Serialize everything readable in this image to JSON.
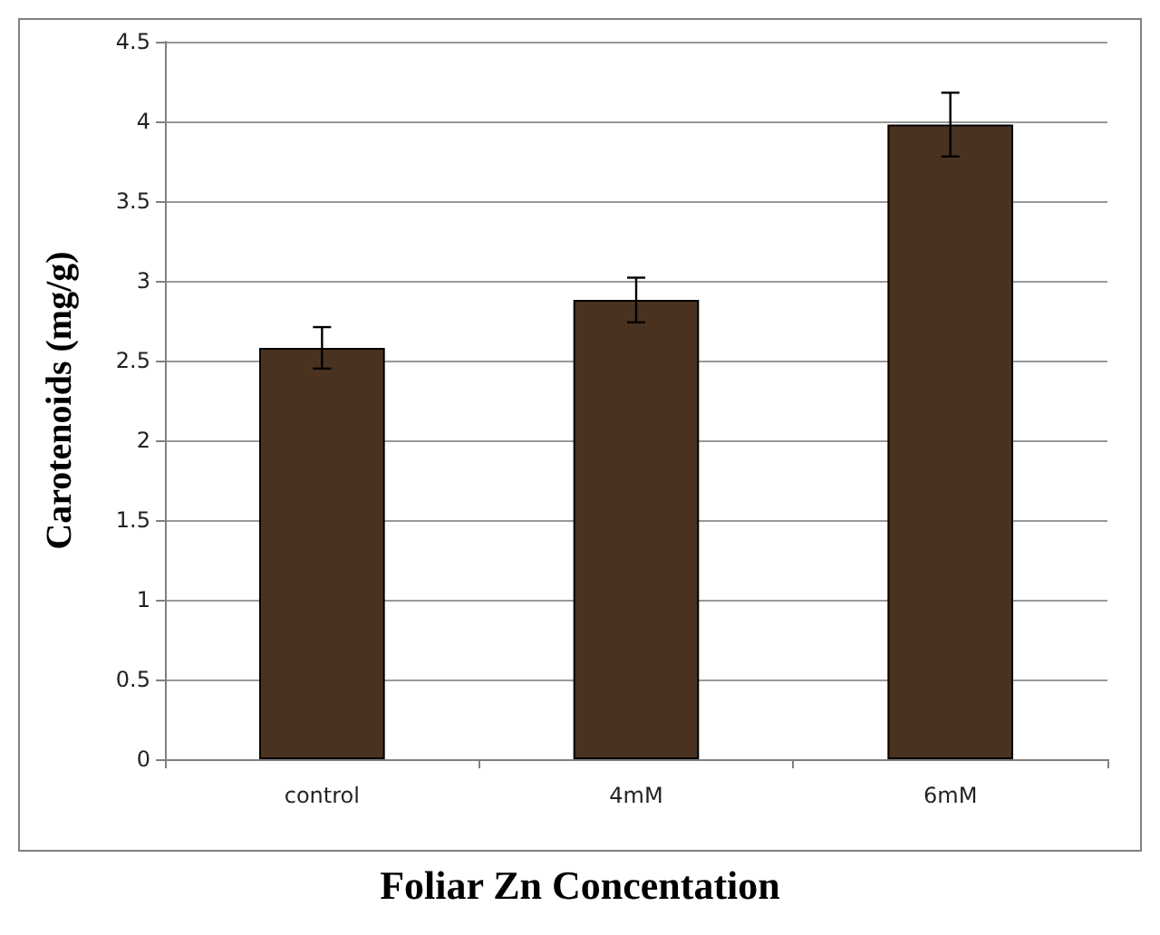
{
  "chart_data": {
    "type": "bar",
    "xlabel": "Foliar Zn Concentation",
    "ylabel": "Carotenoids (mg/g)",
    "categories": [
      "control",
      "4mM",
      "6mM"
    ],
    "series": [
      {
        "color": "#4a3220",
        "values": [
          2.58,
          2.88,
          3.98
        ],
        "errors": [
          0.13,
          0.14,
          0.2
        ]
      }
    ],
    "ylim": [
      0,
      4.5
    ],
    "yticks": [
      0,
      0.5,
      1,
      1.5,
      2,
      2.5,
      3,
      3.5,
      4,
      4.5
    ],
    "grid": "y"
  }
}
